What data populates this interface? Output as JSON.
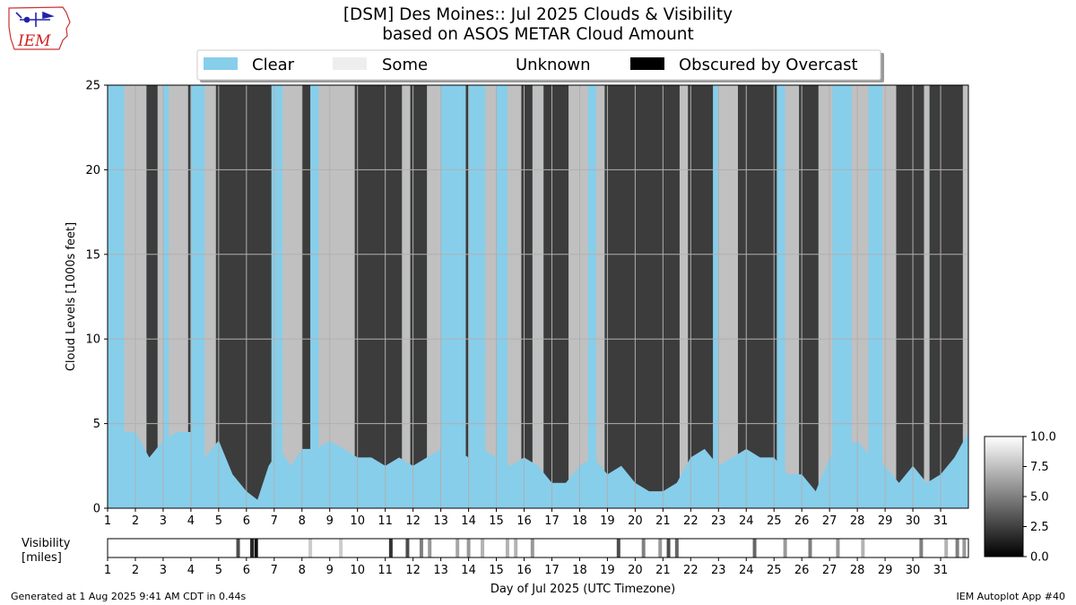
{
  "logo": {
    "text": "IEM"
  },
  "title": {
    "line1": "[DSM] Des Moines:: Jul 2025 Clouds & Visibility",
    "line2": "based on ASOS METAR Cloud Amount"
  },
  "legend": {
    "placement": "top-center",
    "items": [
      {
        "label": "Clear",
        "color": "#87ceeb"
      },
      {
        "label": "Some",
        "color": "#eeeeee"
      },
      {
        "label": "Unknown",
        "color": "#ffffff"
      },
      {
        "label": "Obscured by Overcast",
        "color": "#000000"
      }
    ]
  },
  "colors": {
    "clear": "#87ceeb",
    "few": "#c0c0c0",
    "overcast": "#3c3c3c",
    "obscured": "#000000",
    "grid": "#b0b0b0"
  },
  "chart_data": [
    {
      "type": "area",
      "title": "[DSM] Des Moines:: Jul 2025 Clouds & Visibility",
      "subtitle": "based on ASOS METAR Cloud Amount",
      "xlabel": "",
      "ylabel": "Cloud Levels [1000s feet]",
      "xlim": [
        1,
        32
      ],
      "ylim": [
        0,
        25
      ],
      "yticks": [
        0,
        5,
        10,
        15,
        20,
        25
      ],
      "xticks": [
        "1",
        "2",
        "3",
        "4",
        "5",
        "6",
        "7",
        "8",
        "9",
        "10",
        "11",
        "12",
        "13",
        "14",
        "15",
        "16",
        "17",
        "18",
        "19",
        "20",
        "21",
        "22",
        "23",
        "24",
        "25",
        "26",
        "27",
        "28",
        "29",
        "30",
        "31"
      ],
      "grid": true,
      "series": [
        {
          "name": "Clear",
          "segments": [
            [
              1.0,
              1.6
            ],
            [
              3.0,
              3.2
            ],
            [
              4.0,
              4.5
            ],
            [
              6.9,
              7.3
            ],
            [
              8.3,
              8.6
            ],
            [
              13.0,
              13.9
            ],
            [
              14.0,
              14.6
            ],
            [
              15.0,
              15.4
            ],
            [
              18.3,
              18.6
            ],
            [
              22.8,
              23.0
            ],
            [
              25.1,
              25.4
            ],
            [
              27.1,
              27.8
            ],
            [
              28.4,
              28.9
            ]
          ]
        },
        {
          "name": "Some",
          "segments": [
            [
              1.6,
              2.4
            ],
            [
              2.8,
              3.0
            ],
            [
              3.2,
              3.9
            ],
            [
              4.5,
              4.9
            ],
            [
              7.3,
              8.0
            ],
            [
              8.6,
              9.9
            ],
            [
              11.6,
              11.9
            ],
            [
              12.5,
              13.0
            ],
            [
              14.6,
              15.0
            ],
            [
              15.4,
              15.9
            ],
            [
              16.3,
              16.7
            ],
            [
              17.6,
              18.3
            ],
            [
              18.6,
              18.9
            ],
            [
              21.6,
              21.9
            ],
            [
              23.0,
              23.7
            ],
            [
              25.4,
              25.9
            ],
            [
              26.6,
              27.1
            ],
            [
              27.8,
              28.4
            ],
            [
              28.9,
              29.4
            ],
            [
              30.4,
              30.6
            ],
            [
              31.8,
              32.0
            ]
          ]
        },
        {
          "name": "Overcast",
          "segments": [
            [
              2.4,
              2.8
            ],
            [
              3.9,
              4.0
            ],
            [
              4.9,
              6.9
            ],
            [
              8.0,
              8.3
            ],
            [
              9.9,
              11.6
            ],
            [
              11.9,
              12.5
            ],
            [
              13.9,
              14.0
            ],
            [
              15.9,
              16.3
            ],
            [
              16.7,
              17.6
            ],
            [
              18.9,
              21.6
            ],
            [
              21.9,
              22.8
            ],
            [
              23.7,
              25.1
            ],
            [
              25.9,
              26.6
            ],
            [
              29.4,
              30.4
            ],
            [
              30.6,
              31.8
            ]
          ]
        }
      ],
      "cloud_base_kft": [
        [
          1.0,
          5.0
        ],
        [
          1.5,
          4.5
        ],
        [
          2.0,
          4.5
        ],
        [
          2.5,
          3.0
        ],
        [
          3.0,
          4.0
        ],
        [
          3.5,
          4.5
        ],
        [
          4.0,
          4.5
        ],
        [
          4.5,
          3.0
        ],
        [
          5.0,
          4.0
        ],
        [
          5.5,
          2.0
        ],
        [
          6.0,
          1.0
        ],
        [
          6.4,
          0.5
        ],
        [
          6.8,
          2.5
        ],
        [
          7.2,
          3.5
        ],
        [
          7.6,
          2.5
        ],
        [
          8.0,
          3.5
        ],
        [
          8.5,
          3.5
        ],
        [
          9.0,
          4.0
        ],
        [
          9.5,
          3.5
        ],
        [
          10.0,
          3.0
        ],
        [
          10.5,
          3.0
        ],
        [
          11.0,
          2.5
        ],
        [
          11.5,
          3.0
        ],
        [
          12.0,
          2.5
        ],
        [
          12.5,
          3.0
        ],
        [
          13.0,
          3.5
        ],
        [
          13.5,
          3.5
        ],
        [
          14.0,
          3.0
        ],
        [
          14.5,
          3.5
        ],
        [
          15.0,
          3.0
        ],
        [
          15.5,
          2.5
        ],
        [
          16.0,
          3.0
        ],
        [
          16.5,
          2.5
        ],
        [
          17.0,
          1.5
        ],
        [
          17.5,
          1.5
        ],
        [
          18.0,
          2.5
        ],
        [
          18.5,
          3.0
        ],
        [
          19.0,
          2.0
        ],
        [
          19.5,
          2.5
        ],
        [
          20.0,
          1.5
        ],
        [
          20.5,
          1.0
        ],
        [
          21.0,
          1.0
        ],
        [
          21.5,
          1.5
        ],
        [
          22.0,
          3.0
        ],
        [
          22.5,
          3.5
        ],
        [
          23.0,
          2.5
        ],
        [
          23.5,
          3.0
        ],
        [
          24.0,
          3.5
        ],
        [
          24.5,
          3.0
        ],
        [
          25.0,
          3.0
        ],
        [
          25.5,
          2.0
        ],
        [
          26.0,
          2.0
        ],
        [
          26.5,
          1.0
        ],
        [
          27.0,
          3.0
        ],
        [
          27.5,
          3.5
        ],
        [
          28.0,
          4.0
        ],
        [
          28.5,
          3.0
        ],
        [
          29.0,
          2.5
        ],
        [
          29.5,
          1.5
        ],
        [
          30.0,
          2.5
        ],
        [
          30.5,
          1.5
        ],
        [
          31.0,
          2.0
        ],
        [
          31.5,
          3.0
        ],
        [
          32.0,
          4.5
        ]
      ]
    },
    {
      "type": "heatmap",
      "ylabel_lines": [
        "Visibility",
        "[miles]"
      ],
      "xlabel": "Day of Jul 2025 (UTC Timezone)",
      "xlim": [
        1,
        32
      ],
      "colorbar": {
        "range": [
          0.0,
          10.0
        ],
        "ticks": [
          "0.0",
          "2.5",
          "5.0",
          "7.5",
          "10.0"
        ]
      },
      "low_visibility": [
        {
          "day": 5.7,
          "miles": 3.0
        },
        {
          "day": 6.2,
          "miles": 1.5
        },
        {
          "day": 6.35,
          "miles": 0.5
        },
        {
          "day": 8.3,
          "miles": 8.0
        },
        {
          "day": 9.4,
          "miles": 8.0
        },
        {
          "day": 11.2,
          "miles": 2.0
        },
        {
          "day": 11.8,
          "miles": 3.0
        },
        {
          "day": 12.3,
          "miles": 5.0
        },
        {
          "day": 12.6,
          "miles": 6.0
        },
        {
          "day": 13.6,
          "miles": 6.5
        },
        {
          "day": 14.0,
          "miles": 6.0
        },
        {
          "day": 14.5,
          "miles": 7.0
        },
        {
          "day": 15.4,
          "miles": 7.0
        },
        {
          "day": 15.7,
          "miles": 7.0
        },
        {
          "day": 16.3,
          "miles": 6.0
        },
        {
          "day": 19.4,
          "miles": 3.0
        },
        {
          "day": 20.3,
          "miles": 5.0
        },
        {
          "day": 20.9,
          "miles": 6.0
        },
        {
          "day": 21.2,
          "miles": 3.0
        },
        {
          "day": 21.5,
          "miles": 4.0
        },
        {
          "day": 24.3,
          "miles": 4.0
        },
        {
          "day": 25.4,
          "miles": 6.0
        },
        {
          "day": 26.3,
          "miles": 5.0
        },
        {
          "day": 27.3,
          "miles": 6.0
        },
        {
          "day": 28.2,
          "miles": 7.0
        },
        {
          "day": 30.3,
          "miles": 5.0
        },
        {
          "day": 31.2,
          "miles": 7.0
        },
        {
          "day": 31.6,
          "miles": 5.0
        },
        {
          "day": 31.85,
          "miles": 6.0
        }
      ]
    }
  ],
  "footer": {
    "left": "Generated at 1 Aug 2025 9:41 AM CDT in 0.44s",
    "right": "IEM Autoplot App #40"
  }
}
